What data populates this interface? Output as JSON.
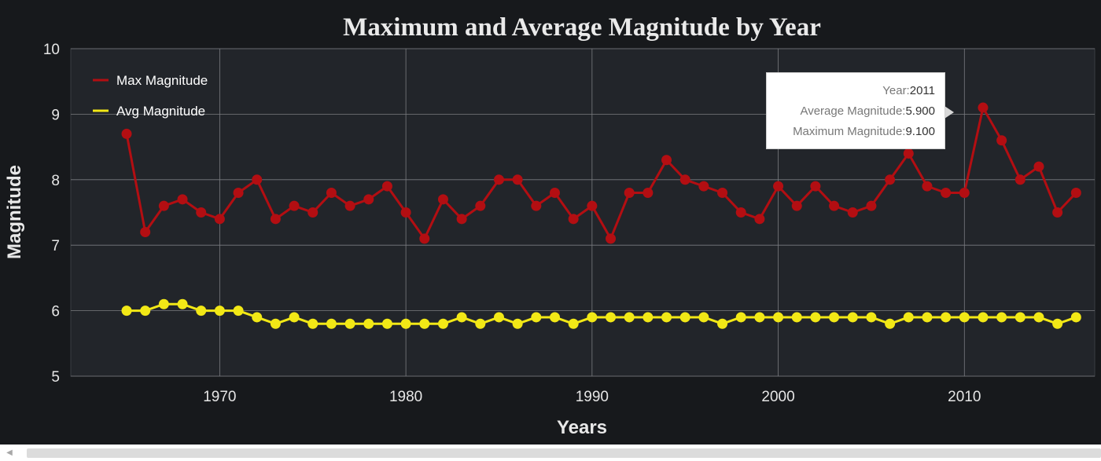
{
  "chart_data": {
    "type": "line",
    "title": "Maximum and Average Magnitude by Year",
    "xlabel": "Years",
    "ylabel": "Magnitude",
    "xlim": [
      1962,
      2017
    ],
    "ylim": [
      5,
      10
    ],
    "x_ticks": [
      1970,
      1980,
      1990,
      2000,
      2010
    ],
    "y_ticks": [
      5,
      6,
      7,
      8,
      9,
      10
    ],
    "grid": true,
    "legend_position": "top-left",
    "x": [
      1965,
      1966,
      1967,
      1968,
      1969,
      1970,
      1971,
      1972,
      1973,
      1974,
      1975,
      1976,
      1977,
      1978,
      1979,
      1980,
      1981,
      1982,
      1983,
      1984,
      1985,
      1986,
      1987,
      1988,
      1989,
      1990,
      1991,
      1992,
      1993,
      1994,
      1995,
      1996,
      1997,
      1998,
      1999,
      2000,
      2001,
      2002,
      2003,
      2004,
      2005,
      2006,
      2007,
      2008,
      2009,
      2010,
      2011,
      2012,
      2013,
      2014,
      2015,
      2016
    ],
    "series": [
      {
        "name": "Max Magnitude",
        "color": "#b30e12",
        "values": [
          8.7,
          7.2,
          7.6,
          7.7,
          7.5,
          7.4,
          7.8,
          8.0,
          7.4,
          7.6,
          7.5,
          7.8,
          7.6,
          7.7,
          7.9,
          7.5,
          7.1,
          7.7,
          7.4,
          7.6,
          8.0,
          8.0,
          7.6,
          7.8,
          7.4,
          7.6,
          7.1,
          7.8,
          7.8,
          8.3,
          8.0,
          7.9,
          7.8,
          7.5,
          7.4,
          7.9,
          7.6,
          7.9,
          7.6,
          7.5,
          7.6,
          8.0,
          8.4,
          7.9,
          7.8,
          7.8,
          9.1,
          8.6,
          8.0,
          8.2,
          7.5,
          7.8
        ]
      },
      {
        "name": "Avg Magnitude",
        "color": "#f2e816",
        "values": [
          6.0,
          6.0,
          6.1,
          6.1,
          6.0,
          6.0,
          6.0,
          5.9,
          5.8,
          5.9,
          5.8,
          5.8,
          5.8,
          5.8,
          5.8,
          5.8,
          5.8,
          5.8,
          5.9,
          5.8,
          5.9,
          5.8,
          5.9,
          5.9,
          5.8,
          5.9,
          5.9,
          5.9,
          5.9,
          5.9,
          5.9,
          5.9,
          5.8,
          5.9,
          5.9,
          5.9,
          5.9,
          5.9,
          5.9,
          5.9,
          5.9,
          5.8,
          5.9,
          5.9,
          5.9,
          5.9,
          5.9,
          5.9,
          5.9,
          5.9,
          5.8,
          5.9
        ]
      }
    ],
    "tooltip": {
      "rows": [
        {
          "label": "Year:",
          "value": "2011"
        },
        {
          "label": "Average Magnitude:",
          "value": "5.900"
        },
        {
          "label": "Maximum Magnitude:",
          "value": "9.100"
        }
      ]
    }
  }
}
